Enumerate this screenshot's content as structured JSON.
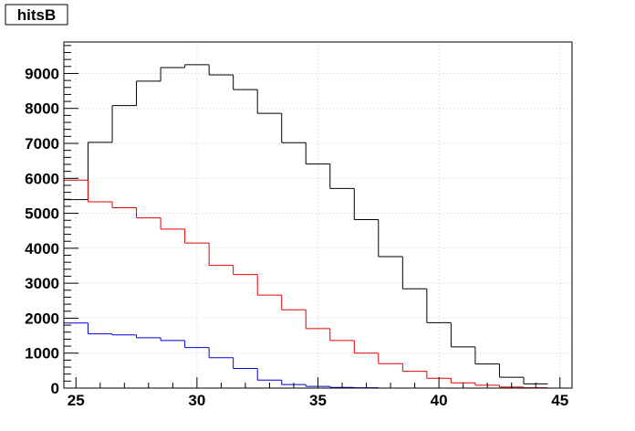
{
  "chart_data": {
    "type": "histogram",
    "title": "hitsB",
    "xlabel": "",
    "ylabel": "",
    "xlim": [
      24.5,
      45.5
    ],
    "ylim": [
      0,
      9900
    ],
    "grid": true,
    "bin_edges": [
      24.5,
      25.5,
      26.5,
      27.5,
      28.5,
      29.5,
      30.5,
      31.5,
      32.5,
      33.5,
      34.5,
      35.5,
      36.5,
      37.5,
      38.5,
      39.5,
      40.5,
      41.5,
      42.5,
      43.5,
      44.5
    ],
    "x_ticks": [
      "25",
      "30",
      "35",
      "40",
      "45"
    ],
    "y_ticks": [
      "0",
      "1000",
      "2000",
      "3000",
      "4000",
      "5000",
      "6000",
      "7000",
      "8000",
      "9000"
    ],
    "series": [
      {
        "color": "#000000",
        "values": [
          5390,
          7030,
          8080,
          8780,
          9170,
          9250,
          8960,
          8540,
          7860,
          7020,
          6410,
          5710,
          4820,
          3760,
          2840,
          1870,
          1180,
          690,
          310,
          120
        ]
      },
      {
        "color": "#e00000",
        "values": [
          5950,
          5330,
          5160,
          4870,
          4550,
          4150,
          3510,
          3250,
          2660,
          2240,
          1700,
          1360,
          1000,
          700,
          480,
          280,
          150,
          80,
          30,
          10
        ]
      },
      {
        "color": "#0000d0",
        "values": [
          1860,
          1550,
          1520,
          1440,
          1360,
          1160,
          870,
          560,
          230,
          100,
          50,
          20,
          10,
          0,
          0,
          0,
          0,
          0,
          0,
          0
        ]
      }
    ]
  }
}
